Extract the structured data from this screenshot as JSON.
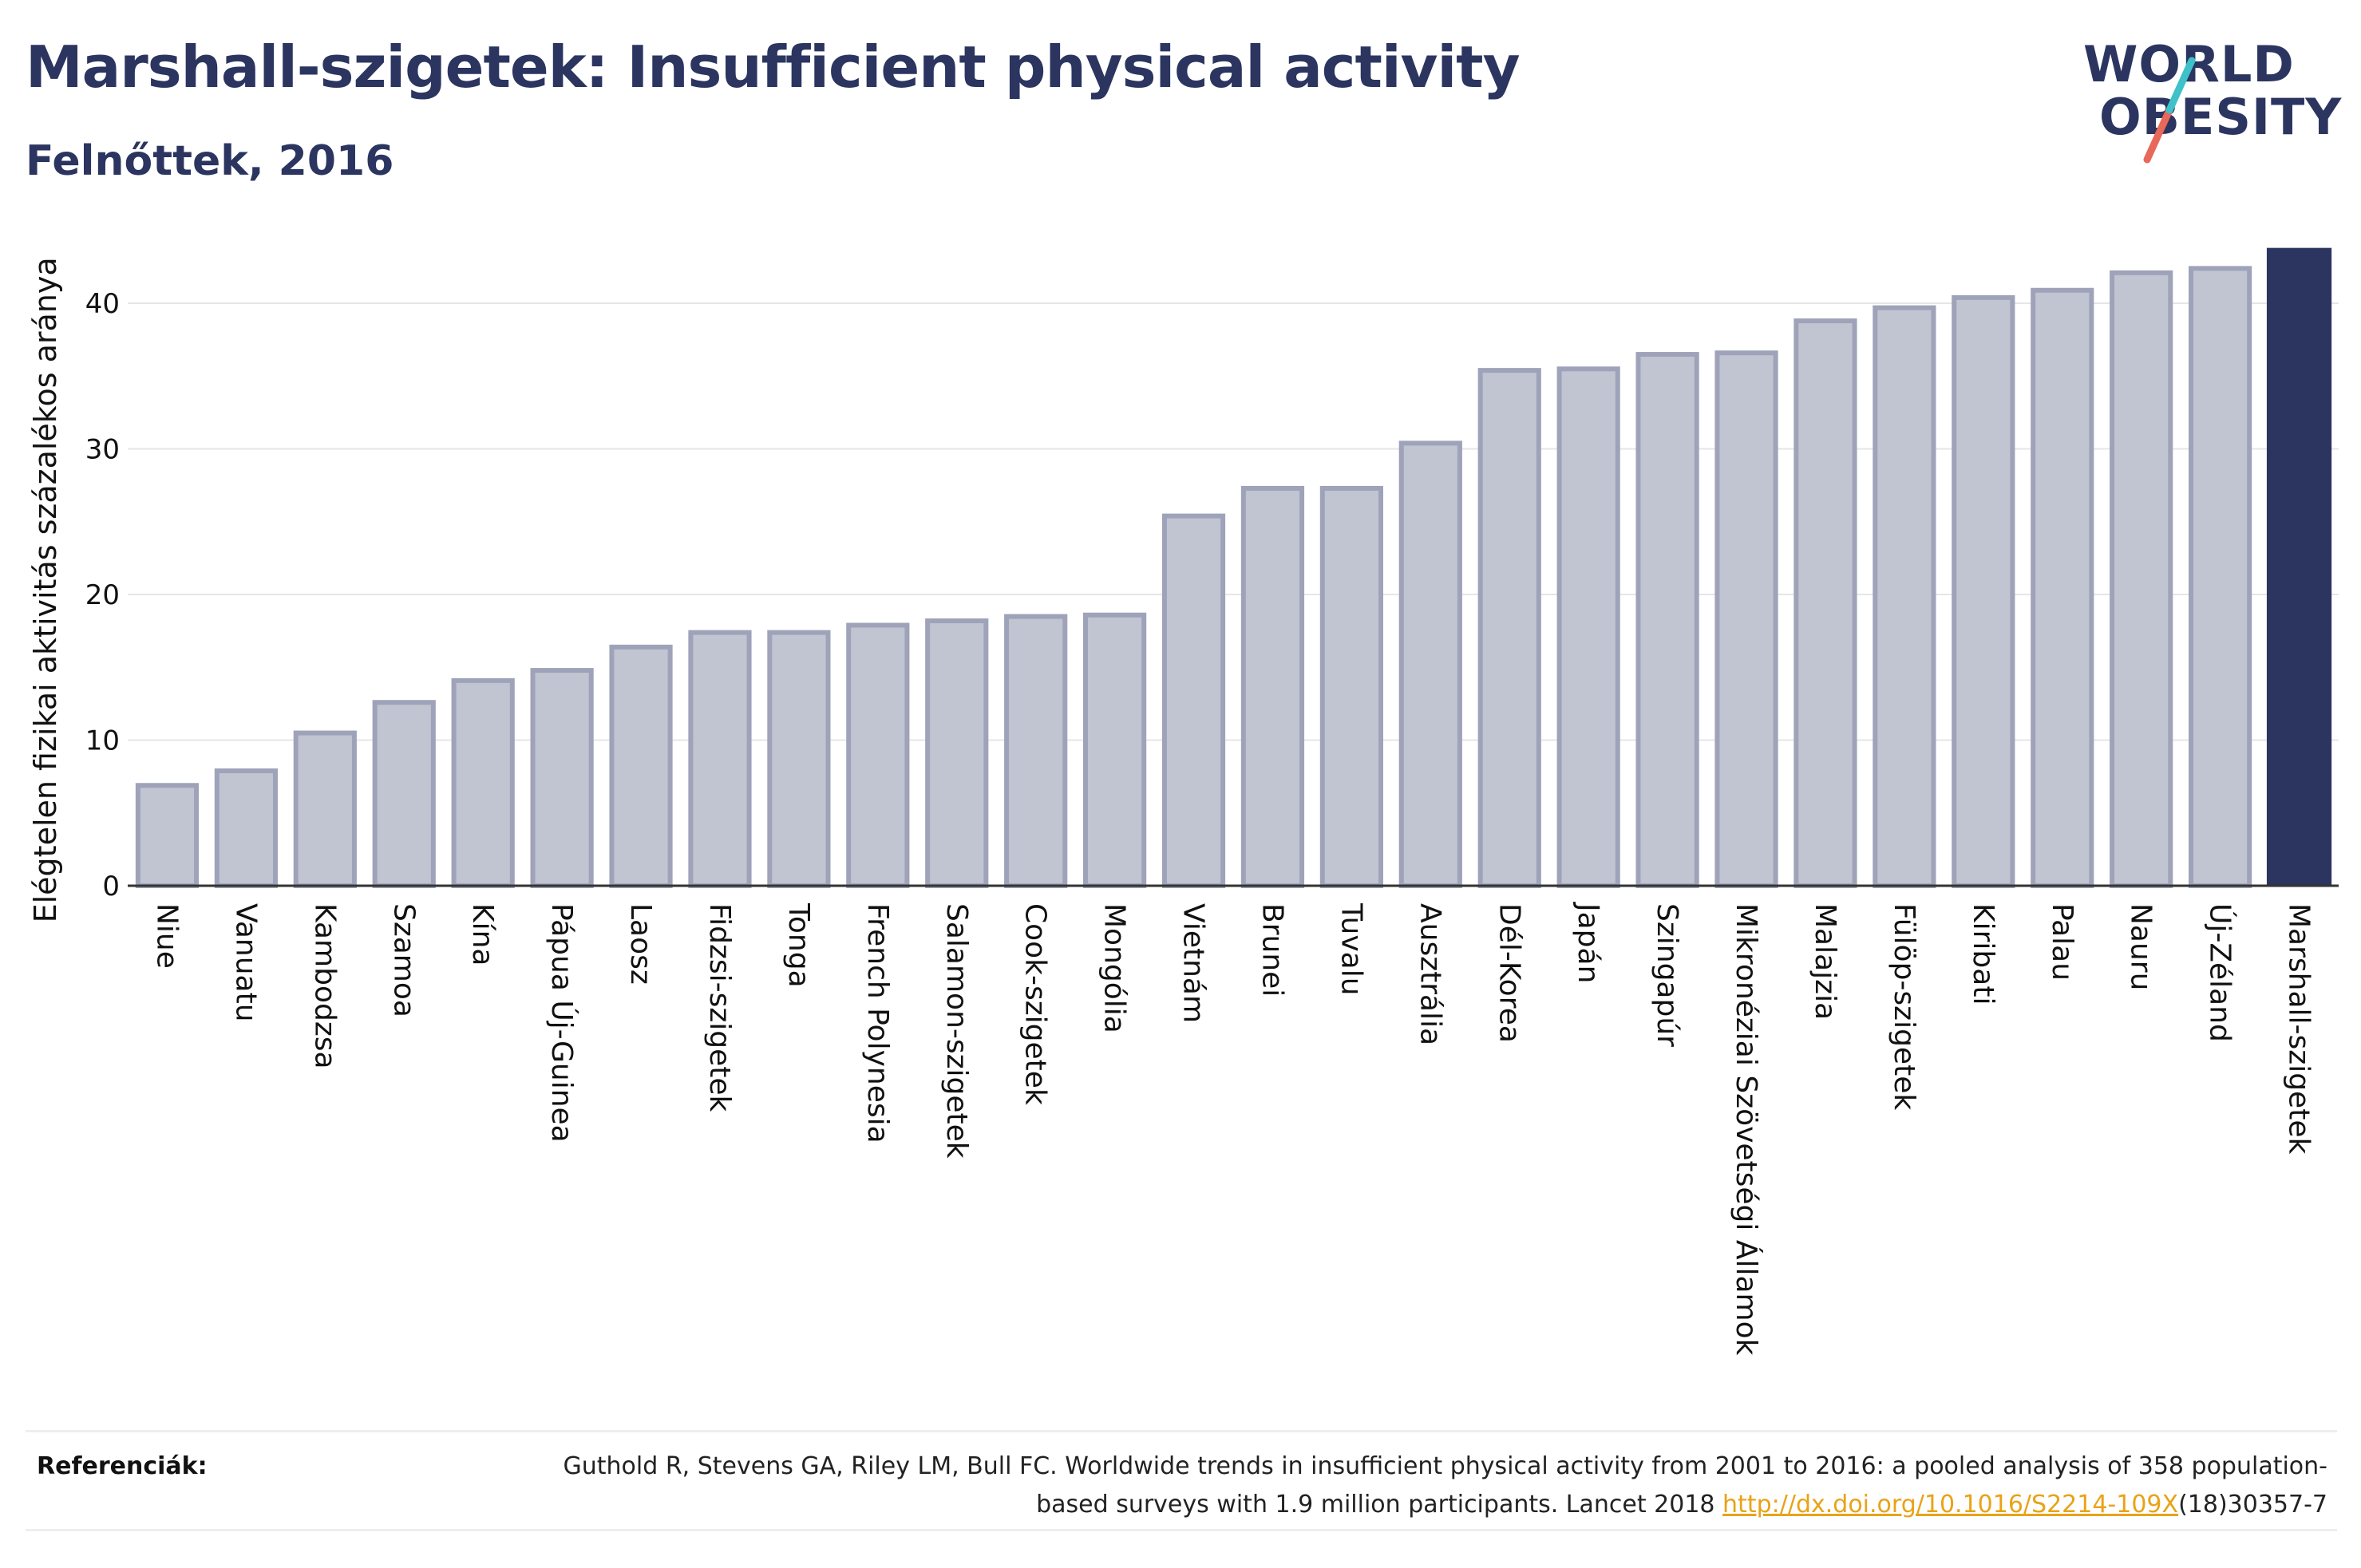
{
  "header": {
    "title": "Marshall-szigetek: Insufficient physical activity",
    "subtitle": "Felnőttek, 2016"
  },
  "logo": {
    "line1": "WORLD",
    "line2": "OBESITY",
    "colors": {
      "text": "#2b3560",
      "slash_top": "#3ec1c9",
      "slash_bottom": "#e8685a"
    }
  },
  "chart_data": {
    "type": "bar",
    "ylabel": "Elégtelen fizikai aktivitás százalékos aránya",
    "ylim": [
      0,
      45
    ],
    "yticks": [
      0,
      10,
      20,
      30,
      40
    ],
    "grid": true,
    "categories": [
      "Niue",
      "Vanuatu",
      "Kambodzsa",
      "Szamoa",
      "Kína",
      "Pápua Új-Guinea",
      "Laosz",
      "Fidzsi-szigetek",
      "Tonga",
      "French Polynesia",
      "Salamon-szigetek",
      "Cook-szigetek",
      "Mongólia",
      "Vietnám",
      "Brunei",
      "Tuvalu",
      "Ausztrália",
      "Dél-Korea",
      "Japán",
      "Szingapúr",
      "Mikronéziai Szövetségi Államok",
      "Malajzia",
      "Fülöp-szigetek",
      "Kiribati",
      "Palau",
      "Nauru",
      "Új-Zéland",
      "Marshall-szigetek"
    ],
    "values": [
      7.0,
      8.0,
      10.6,
      12.7,
      14.2,
      14.9,
      16.5,
      17.5,
      17.5,
      18.0,
      18.3,
      18.6,
      18.7,
      25.5,
      27.4,
      27.4,
      30.5,
      35.5,
      35.6,
      36.6,
      36.7,
      38.9,
      39.8,
      40.5,
      41.0,
      42.2,
      42.5,
      43.8
    ],
    "highlight": "Marshall-szigetek",
    "colors": {
      "bar": "#c1c4d1",
      "bar_border": "#9fa3b9",
      "highlight": "#2b3560"
    }
  },
  "references": {
    "label": "Referenciák:",
    "text_before": "Guthold R, Stevens GA, Riley LM, Bull FC. Worldwide trends in insufficient physical activity from 2001 to 2016: a pooled analysis of 358 population-based surveys with 1.9 million participants. Lancet 2018 ",
    "link": "http://dx.doi.org/10.1016/S2214-109X",
    "text_after": "(18)30357-7"
  }
}
